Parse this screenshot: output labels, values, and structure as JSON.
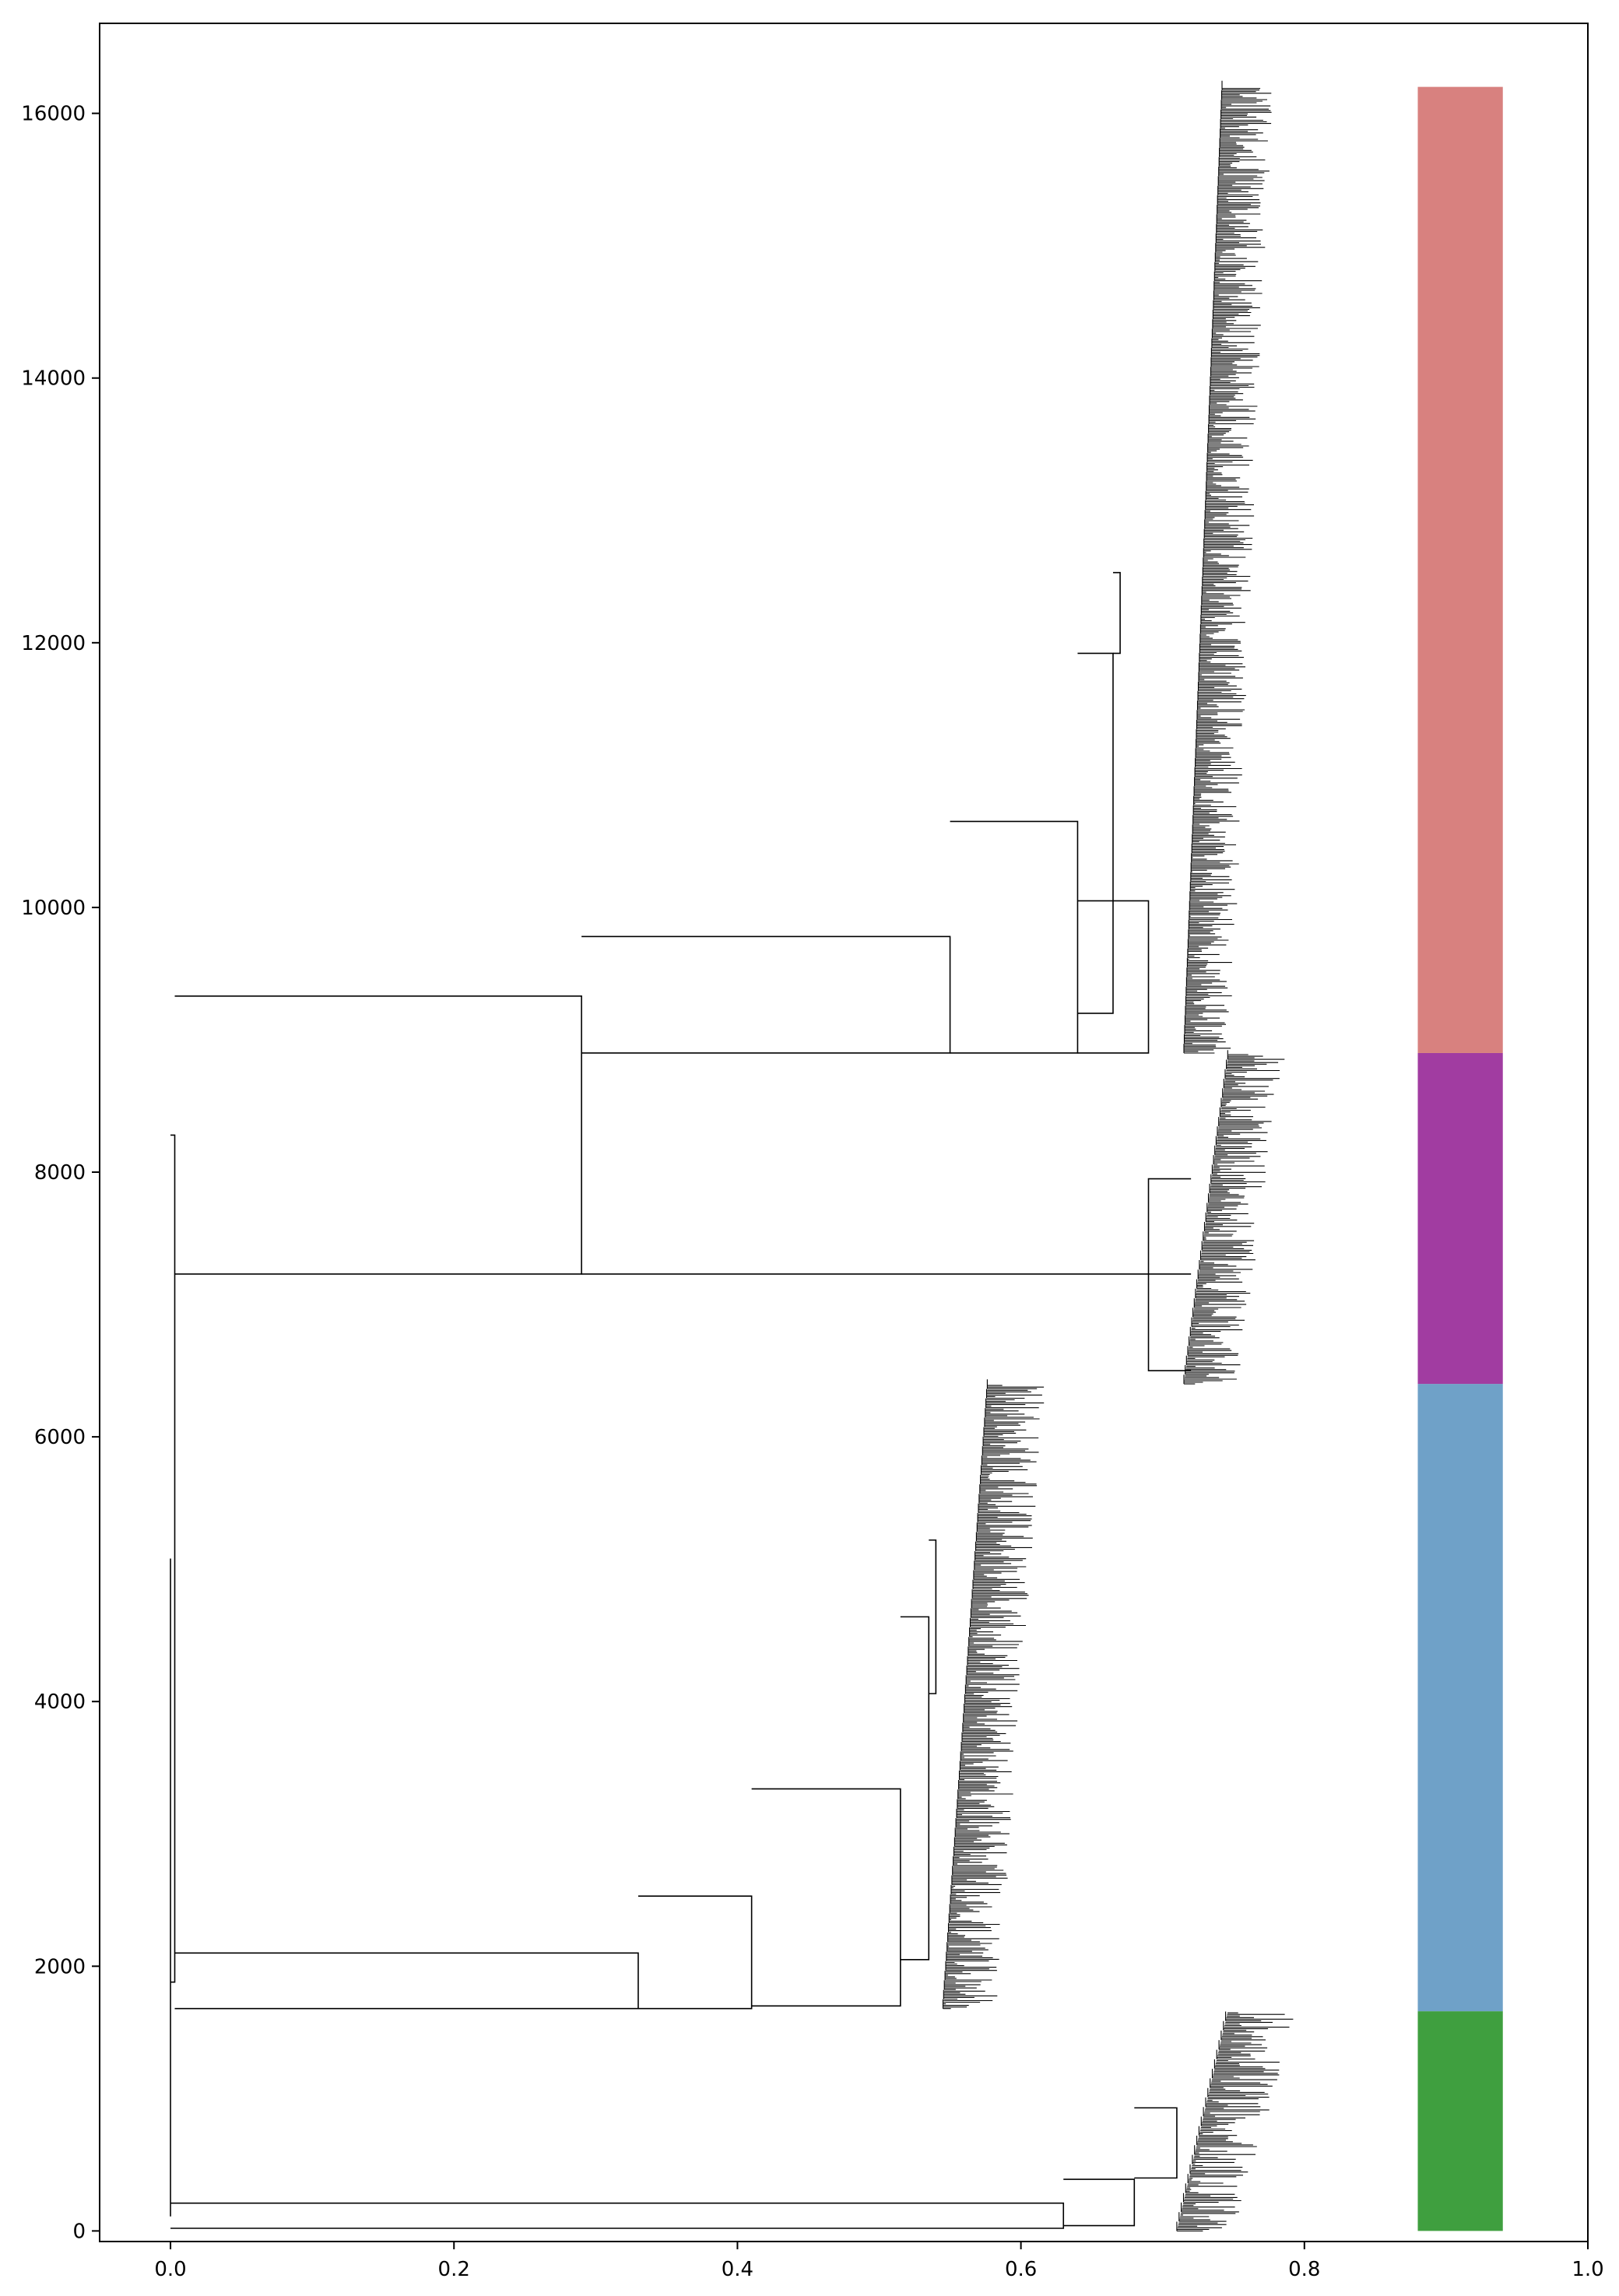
{
  "chart_data": {
    "type": "dendrogram",
    "title": "",
    "xlabel": "",
    "ylabel": "",
    "xlim": [
      -0.05,
      1.0
    ],
    "ylim": [
      -80,
      16680
    ],
    "x_ticks": [
      "0.0",
      "0.2",
      "0.4",
      "0.6",
      "0.8",
      "1.0"
    ],
    "y_ticks": [
      "0",
      "2000",
      "4000",
      "6000",
      "8000",
      "10000",
      "12000",
      "14000",
      "16000"
    ],
    "grid": false,
    "legend": "none",
    "cluster_bar": {
      "x_range": [
        0.88,
        0.94
      ],
      "segments": [
        {
          "y_from": 0,
          "y_to": 1660,
          "color": "#3f9f3f"
        },
        {
          "y_from": 1660,
          "y_to": 6400,
          "color": "#6fa1c8"
        },
        {
          "y_from": 6400,
          "y_to": 8900,
          "color": "#a13ca1"
        },
        {
          "y_from": 8900,
          "y_to": 16200,
          "color": "#d8817f"
        }
      ]
    },
    "links": [
      {
        "x": 0.0,
        "y1": 110,
        "y2": 5080,
        "x_left": 0.0,
        "x_right": 0.0
      },
      {
        "x": 0.003,
        "y1": 1880,
        "y2": 8280,
        "x_left": 0.0,
        "x_right": 0.003
      },
      {
        "x": 0.29,
        "y1": 7230,
        "y2": 9330,
        "x_left": 0.003,
        "x_right": 0.29
      },
      {
        "x": 0.55,
        "y1": 8900,
        "y2": 9780,
        "x_left": 0.29,
        "x_right": 0.55
      },
      {
        "x": 0.64,
        "y1": 8900,
        "y2": 10650,
        "x_left": 0.55,
        "x_right": 0.64
      },
      {
        "x": 0.665,
        "y1": 9200,
        "y2": 11920,
        "x_left": 0.64,
        "x_right": 0.665
      },
      {
        "x": 0.69,
        "y1": 8900,
        "y2": 10050,
        "x_left": 0.64,
        "x_right": 0.69
      },
      {
        "x": 0.67,
        "y1": 11920,
        "y2": 12530,
        "x_left": 0.665,
        "x_right": 0.67
      },
      {
        "x": 0.72,
        "y1": 7230,
        "y2": 7230,
        "x_left": 0.29,
        "x_right": 0.72
      },
      {
        "x": 0.69,
        "y1": 6500,
        "y2": 7950,
        "x_left": 0.72,
        "x_right": 0.69
      },
      {
        "x": 0.33,
        "y1": 1680,
        "y2": 2100,
        "x_left": 0.003,
        "x_right": 0.33
      },
      {
        "x": 0.41,
        "y1": 1680,
        "y2": 2530,
        "x_left": 0.33,
        "x_right": 0.41
      },
      {
        "x": 0.515,
        "y1": 1700,
        "y2": 3340,
        "x_left": 0.41,
        "x_right": 0.515
      },
      {
        "x": 0.535,
        "y1": 2050,
        "y2": 4640,
        "x_left": 0.515,
        "x_right": 0.535
      },
      {
        "x": 0.54,
        "y1": 4060,
        "y2": 5220,
        "x_left": 0.535,
        "x_right": 0.54
      },
      {
        "x": 0.63,
        "y1": 20,
        "y2": 210,
        "x_left": 0.0,
        "x_right": 0.63
      },
      {
        "x": 0.68,
        "y1": 40,
        "y2": 390,
        "x_left": 0.63,
        "x_right": 0.68
      },
      {
        "x": 0.71,
        "y1": 400,
        "y2": 930,
        "x_left": 0.68,
        "x_right": 0.71
      }
    ]
  }
}
